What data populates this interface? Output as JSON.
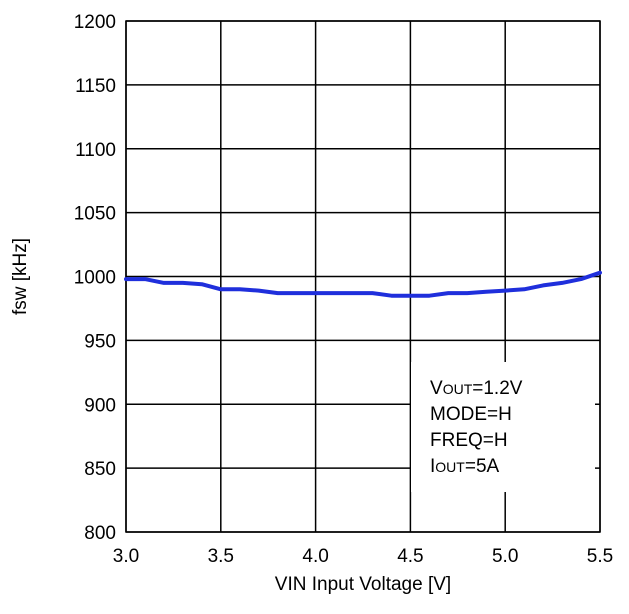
{
  "chart_data": {
    "type": "line",
    "title": "",
    "xlabel": "VIN Input Voltage [V]",
    "ylabel": "fsw [kHz]",
    "xlim": [
      3.0,
      5.5
    ],
    "ylim": [
      800,
      1200
    ],
    "xticks": [
      "3.0",
      "3.5",
      "4.0",
      "4.5",
      "5.0",
      "5.5"
    ],
    "yticks": [
      "800",
      "850",
      "900",
      "950",
      "1000",
      "1050",
      "1100",
      "1150",
      "1200"
    ],
    "grid": true,
    "series_color": "#1f2fdc",
    "series": [
      {
        "x": [
          3.0,
          3.1,
          3.2,
          3.3,
          3.4,
          3.5,
          3.6,
          3.7,
          3.8,
          3.9,
          4.0,
          4.1,
          4.2,
          4.3,
          4.4,
          4.5,
          4.6,
          4.7,
          4.8,
          4.9,
          5.0,
          5.1,
          5.2,
          5.3,
          5.4,
          5.5
        ],
        "values": [
          998,
          998,
          995,
          995,
          994,
          990,
          990,
          989,
          987,
          987,
          987,
          987,
          987,
          987,
          985,
          985,
          985,
          987,
          987,
          988,
          989,
          990,
          993,
          995,
          998,
          1003
        ]
      }
    ],
    "annotation": [
      {
        "main": "V",
        "sub": "OUT",
        "rest": "=1.2V"
      },
      {
        "main": "MODE=H",
        "sub": "",
        "rest": ""
      },
      {
        "main": "FREQ=H",
        "sub": "",
        "rest": ""
      },
      {
        "main": "I",
        "sub": "OUT",
        "rest": "=5A"
      }
    ]
  }
}
